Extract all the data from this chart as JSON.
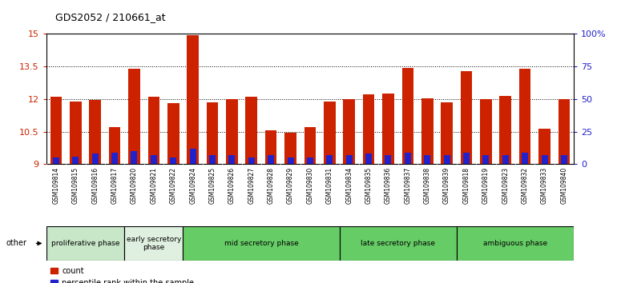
{
  "title": "GDS2052 / 210661_at",
  "samples": [
    "GSM109814",
    "GSM109815",
    "GSM109816",
    "GSM109817",
    "GSM109820",
    "GSM109821",
    "GSM109822",
    "GSM109824",
    "GSM109825",
    "GSM109826",
    "GSM109827",
    "GSM109828",
    "GSM109829",
    "GSM109830",
    "GSM109831",
    "GSM109834",
    "GSM109835",
    "GSM109836",
    "GSM109837",
    "GSM109838",
    "GSM109839",
    "GSM109818",
    "GSM109819",
    "GSM109823",
    "GSM109832",
    "GSM109833",
    "GSM109840"
  ],
  "count_values": [
    12.1,
    11.9,
    11.95,
    10.7,
    13.4,
    12.1,
    11.8,
    14.95,
    11.85,
    12.0,
    12.1,
    10.55,
    10.45,
    10.7,
    11.9,
    12.0,
    12.2,
    12.25,
    13.45,
    12.05,
    11.85,
    13.3,
    12.0,
    12.15,
    13.4,
    10.65,
    12.0
  ],
  "percentile_values": [
    5,
    6,
    8,
    9,
    10,
    7,
    5,
    12,
    7,
    7,
    5,
    7,
    5,
    5,
    7,
    7,
    8,
    7,
    9,
    7,
    7,
    9,
    7,
    7,
    9,
    7,
    7
  ],
  "y_min": 9.0,
  "y_max": 15.0,
  "y_ticks": [
    9.0,
    10.5,
    12.0,
    13.5,
    15.0
  ],
  "y2_labels": [
    "0",
    "25",
    "50",
    "75",
    "100%"
  ],
  "bar_color": "#cc2200",
  "percentile_color": "#2222cc",
  "phase_data": [
    {
      "label": "proliferative phase",
      "start": 0,
      "end": 4,
      "color": "#c8e6c8"
    },
    {
      "label": "early secretory\nphase",
      "start": 4,
      "end": 7,
      "color": "#e0f0e0"
    },
    {
      "label": "mid secretory phase",
      "start": 7,
      "end": 15,
      "color": "#66cc66"
    },
    {
      "label": "late secretory phase",
      "start": 15,
      "end": 21,
      "color": "#66cc66"
    },
    {
      "label": "ambiguous phase",
      "start": 21,
      "end": 27,
      "color": "#66cc66"
    }
  ],
  "background_color": "#ffffff",
  "tick_bg_color": "#dddddd"
}
